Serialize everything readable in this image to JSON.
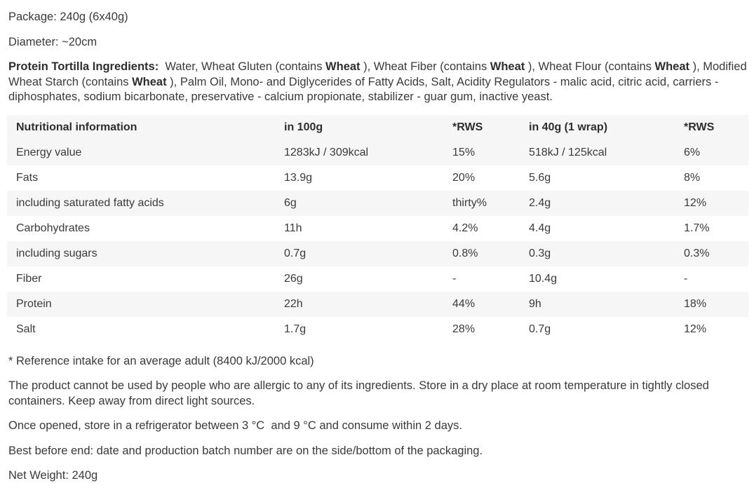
{
  "colors": {
    "text": "#3a3a3a",
    "heading": "#2e2e2e",
    "row_shade": "#f6f6f6",
    "background": "#ffffff"
  },
  "intro": {
    "package": "Package: 240g (6x40g)",
    "diameter": "Diameter: ~20cm"
  },
  "ingredients": {
    "segments": [
      {
        "text": "Protein Tortilla Ingredients:",
        "bold": true
      },
      {
        "text": "  Water, Wheat Gluten (contains ",
        "bold": false
      },
      {
        "text": "Wheat",
        "bold": true
      },
      {
        "text": " ), Wheat Fiber (contains ",
        "bold": false
      },
      {
        "text": "Wheat",
        "bold": true
      },
      {
        "text": " ), Wheat Flour (contains ",
        "bold": false
      },
      {
        "text": "Wheat",
        "bold": true
      },
      {
        "text": " ), Modified Wheat Starch (contains ",
        "bold": false
      },
      {
        "text": "Wheat",
        "bold": true
      },
      {
        "text": " ), Palm Oil, Mono- and Diglycerides of Fatty Acids, Salt, Acidity Regulators - malic acid, citric acid, carriers - diphosphates, sodium bicarbonate, preservative - calcium propionate, stabilizer - guar gum, inactive yeast.",
        "bold": false
      }
    ]
  },
  "nutrition_table": {
    "headers": [
      "Nutritional information",
      "in 100g",
      "*RWS",
      "in 40g (1 wrap)",
      "*RWS"
    ],
    "rows": [
      [
        "Energy value",
        "1283kJ / 309kcal",
        "15%",
        "518kJ / 125kcal",
        "6%"
      ],
      [
        "Fats",
        "13.9g",
        "20%",
        "5.6g",
        "8%"
      ],
      [
        "including saturated fatty acids",
        "6g",
        "thirty%",
        "2.4g",
        "12%"
      ],
      [
        "Carbohydrates",
        "11h",
        "4.2%",
        "4.4g",
        "1.7%"
      ],
      [
        "including sugars",
        "0.7g",
        "0.8%",
        "0.3g",
        "0.3%"
      ],
      [
        "Fiber",
        "26g",
        "-",
        "10.4g",
        "-"
      ],
      [
        "Protein",
        "22h",
        "44%",
        "9h",
        "18%"
      ],
      [
        "Salt",
        "1.7g",
        "28%",
        "0.7g",
        "12%"
      ]
    ]
  },
  "footnotes": {
    "reference": "* Reference intake for an average adult (8400 kJ/2000 kcal)",
    "allergy": "The product cannot be used by people who are allergic to any of its ingredients. Store in a dry place at room temperature in tightly closed containers. Keep away from direct light sources.",
    "storage": "Once opened, store in a refrigerator between 3 °C  and 9 °C and consume within 2 days.",
    "best_before": "Best before end: date and production batch number are on the side/bottom of the packaging.",
    "net_weight": "Net Weight: 240g"
  }
}
